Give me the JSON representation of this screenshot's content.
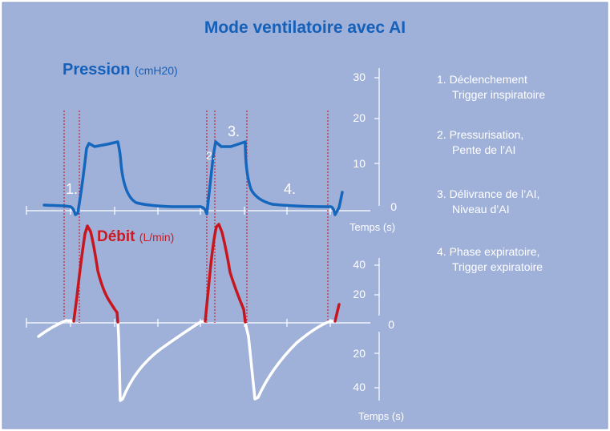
{
  "title": "Mode ventilatoire avec AI",
  "pressure": {
    "label": "Pression",
    "unit": "(cmH20)",
    "ticks": [
      "30",
      "20",
      "10",
      "0"
    ],
    "time_label": "Temps (s)"
  },
  "flow": {
    "label": "Débit",
    "unit": "(L/min)",
    "ticks_up": [
      "40",
      "20"
    ],
    "zero": "0",
    "ticks_down": [
      "20",
      "40"
    ],
    "time_label": "Temps (s)"
  },
  "phase_markers": [
    "1.",
    "2.",
    "3.",
    "4."
  ],
  "legend": [
    {
      "line1": "1. Déclenchement",
      "line2": "Trigger inspiratoire"
    },
    {
      "line1": "2. Pressurisation,",
      "line2": "Pente de l’AI"
    },
    {
      "line1": "3. Délivrance de l’AI,",
      "line2": "Niveau d’AI"
    },
    {
      "line1": "4. Phase expiratoire,",
      "line2": "Trigger expiratoire"
    }
  ],
  "colors": {
    "background": "#9fb0d9",
    "pressure_curve": "#1566bd",
    "inspiratory_flow": "#c8161e",
    "expiratory_flow": "#ffffff",
    "title": "#1560b8",
    "marker_lines": "#cc2233"
  }
}
